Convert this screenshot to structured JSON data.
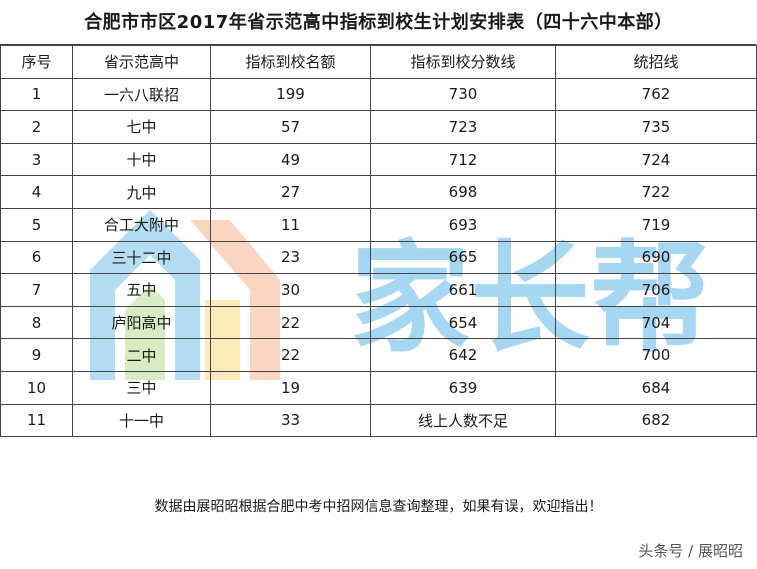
{
  "title": "合肥市市区2017年省示范高中指标到校生计划安排表（四十六中本部）",
  "table": {
    "headers": [
      "序号",
      "省示范高中",
      "指标到校名额",
      "指标到校分数线",
      "统招线"
    ],
    "rows": [
      [
        "1",
        "一六八联招",
        "199",
        "730",
        "762"
      ],
      [
        "2",
        "七中",
        "57",
        "723",
        "735"
      ],
      [
        "3",
        "十中",
        "49",
        "712",
        "724"
      ],
      [
        "4",
        "九中",
        "27",
        "698",
        "722"
      ],
      [
        "5",
        "合工大附中",
        "11",
        "693",
        "719"
      ],
      [
        "6",
        "三十二中",
        "23",
        "665",
        "690"
      ],
      [
        "7",
        "五中",
        "30",
        "661",
        "706"
      ],
      [
        "8",
        "庐阳高中",
        "22",
        "654",
        "704"
      ],
      [
        "9",
        "二中",
        "22",
        "642",
        "700"
      ],
      [
        "10",
        "三中",
        "19",
        "639",
        "684"
      ],
      [
        "11",
        "十一中",
        "33",
        "线上人数不足",
        "682"
      ]
    ]
  },
  "footer_note": "数据由展昭昭根据合肥中考中招网信息查询整理，如果有误，欢迎指出！",
  "watermark_text": "家长帮",
  "source_label": "头条号 / 展昭昭",
  "colors": {
    "watermark_blue": "#5bb4e8",
    "watermark_orange": "#f4a67a",
    "watermark_yellow": "#f6d36b",
    "watermark_green": "#a9d57c"
  }
}
